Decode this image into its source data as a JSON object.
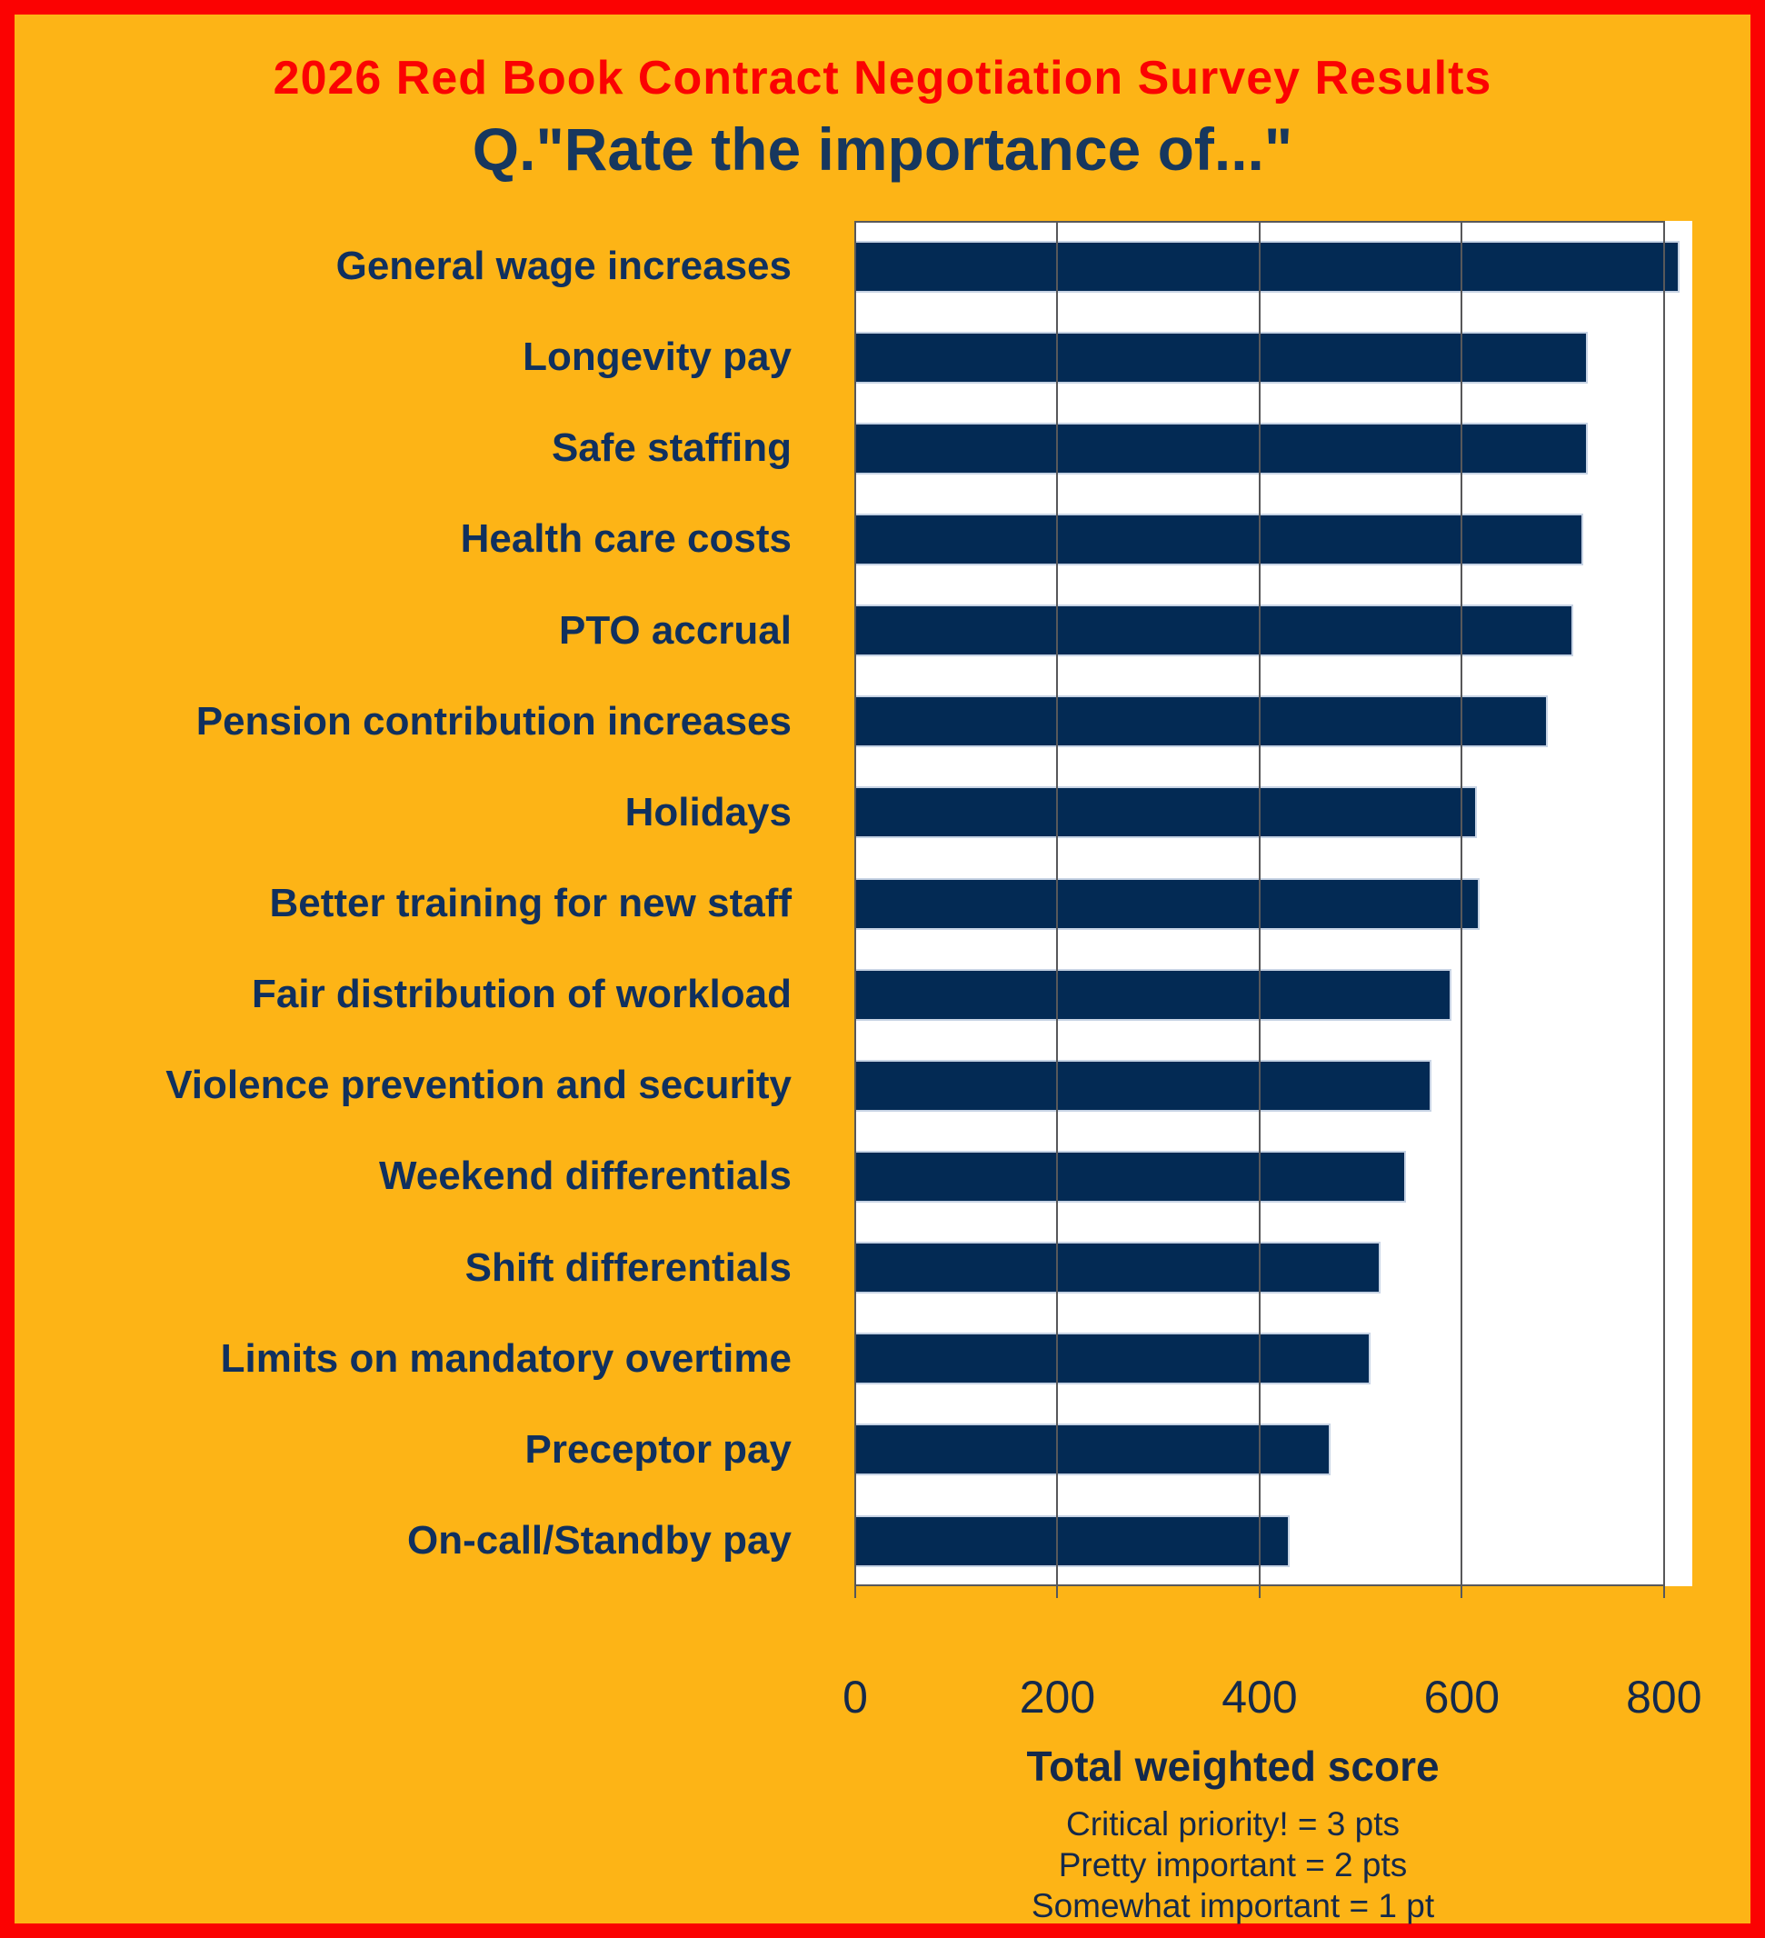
{
  "page": {
    "title": "2026 Red Book Contract Negotiation Survey Results",
    "subtitle": "Q.\"Rate the importance of...\"",
    "background_color": "#FDB416",
    "border_color": "#FB0202",
    "title_color": "#FB0202",
    "subtitle_color": "#17375E"
  },
  "chart_data": {
    "type": "bar",
    "orientation": "horizontal",
    "title": "2026 Red Book Contract Negotiation Survey Results",
    "subtitle": "Q.\"Rate the importance of...\"",
    "categories": [
      "General wage increases",
      "Longevity pay",
      "Safe staffing",
      "Health care costs",
      "PTO accrual",
      "Pension contribution increases",
      "Holidays",
      "Better training for new staff",
      "Fair distribution of workload",
      "Violence prevention and security",
      "Weekend differentials",
      "Shift differentials",
      "Limits on mandatory overtime",
      "Preceptor pay",
      "On-call/Standby pay"
    ],
    "values": [
      815,
      725,
      725,
      720,
      710,
      685,
      615,
      618,
      590,
      570,
      545,
      520,
      510,
      470,
      430
    ],
    "xlabel": "Total weighted score",
    "x_ticks": [
      0,
      200,
      400,
      600,
      800
    ],
    "xlim": [
      0,
      828
    ],
    "grid": true,
    "legend_position": "below-axis",
    "legend_notes": [
      "Critical priority! = 3 pts",
      "Pretty important = 2 pts",
      "Somewhat important = 1 pt"
    ],
    "bar_color": "#032A54",
    "plot_background": "#FFFFFF",
    "gridline_color": "#58585A"
  }
}
